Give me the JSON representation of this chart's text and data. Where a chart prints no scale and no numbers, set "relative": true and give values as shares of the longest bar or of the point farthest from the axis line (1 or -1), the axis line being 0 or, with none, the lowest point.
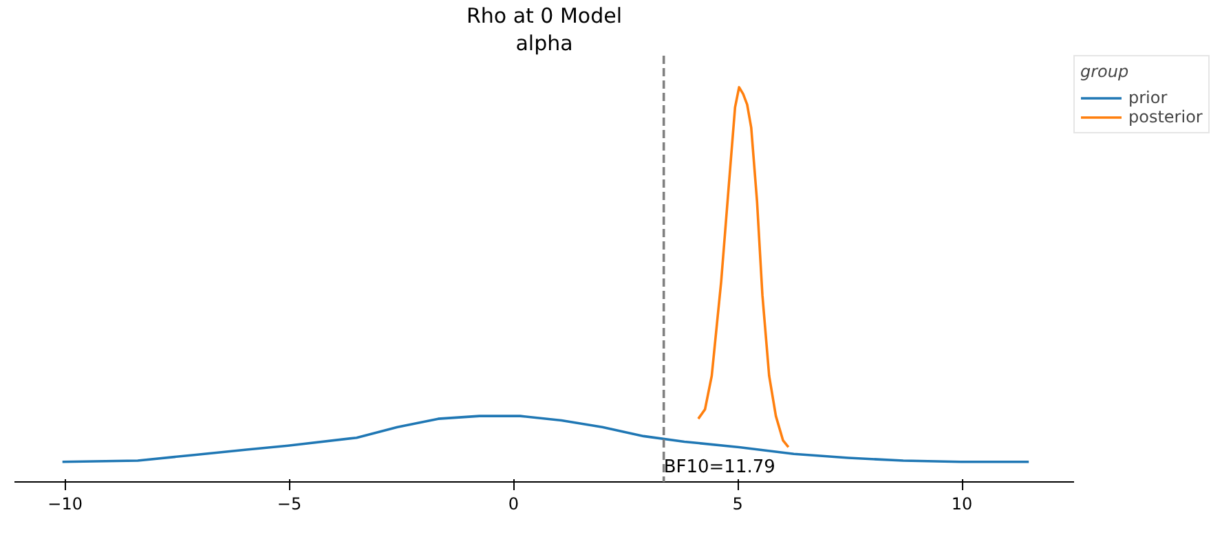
{
  "chart_data": {
    "type": "line",
    "title": "Rho at 0 Model",
    "subtitle": "alpha",
    "legend_title": "group",
    "relative": true,
    "xlim": [
      -11.13,
      12.5
    ],
    "xticks": [
      {
        "value": -10,
        "label": "−10"
      },
      {
        "value": -5,
        "label": "−5"
      },
      0,
      5,
      10
    ],
    "grid": false,
    "legend": "top right",
    "line_style": "solid",
    "series": [
      {
        "name": "prior",
        "color": "#1f77b4",
        "x": [
          -10.06,
          -8.38,
          -7.16,
          -5.95,
          -5.03,
          -3.5,
          -2.59,
          -1.68,
          -0.76,
          0.15,
          1.07,
          1.98,
          2.9,
          3.81,
          5.03,
          6.25,
          7.47,
          8.69,
          9.97,
          11.49
        ],
        "values": [
          0.051,
          0.054,
          0.068,
          0.082,
          0.092,
          0.112,
          0.139,
          0.16,
          0.167,
          0.167,
          0.156,
          0.139,
          0.116,
          0.102,
          0.088,
          0.071,
          0.061,
          0.054,
          0.051,
          0.051
        ]
      },
      {
        "name": "posterior",
        "color": "#ff7f0e",
        "x": [
          4.12,
          4.27,
          4.42,
          4.63,
          4.82,
          4.94,
          5.03,
          5.12,
          5.21,
          5.3,
          5.43,
          5.55,
          5.7,
          5.85,
          6.01,
          6.13
        ],
        "values": [
          0.16,
          0.184,
          0.269,
          0.507,
          0.779,
          0.949,
          1.0,
          0.983,
          0.956,
          0.898,
          0.711,
          0.473,
          0.269,
          0.167,
          0.105,
          0.088
        ]
      }
    ],
    "ref_lines": [
      {
        "axis": "x",
        "value": 3.35,
        "color": "#808080",
        "line_style": "dashed"
      }
    ],
    "annotations": [
      {
        "text": "BF10=11.79",
        "x": 3.35,
        "y": 0
      }
    ]
  }
}
